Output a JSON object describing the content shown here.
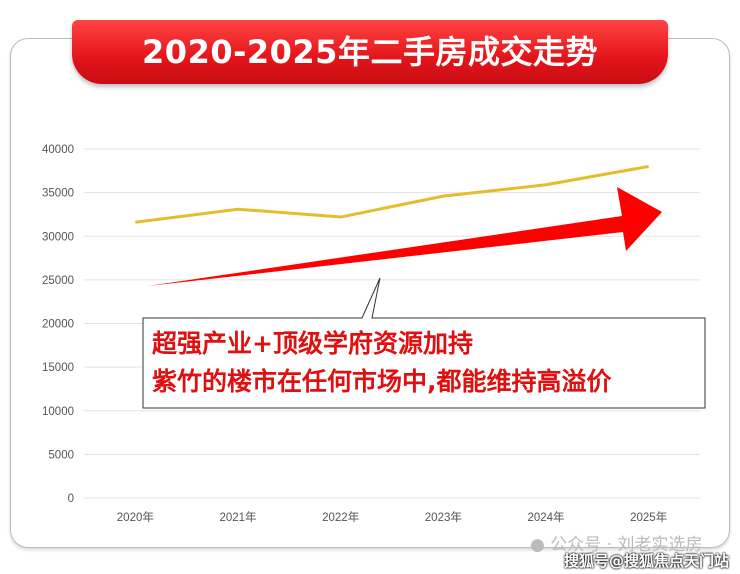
{
  "title": "2020-2025年二手房成交走势",
  "chart_data": {
    "type": "line",
    "title": "2020-2025年二手房成交走势",
    "categories": [
      "2020年",
      "2021年",
      "2022年",
      "2023年",
      "2024年",
      "2025年"
    ],
    "series": [
      {
        "values": [
          31600,
          33100,
          32200,
          34600,
          35900,
          38000
        ],
        "color": "#e3bd2a"
      }
    ],
    "ylim": [
      0,
      40000
    ],
    "yticks": [
      0,
      5000,
      10000,
      15000,
      20000,
      25000,
      30000,
      35000,
      40000
    ],
    "grid": true,
    "annotation_arrow_color": "#ff0000"
  },
  "callout": {
    "line1": "超强产业+顶级学府资源加持",
    "line2": "紫竹的楼市在任何市场中,都能维持高溢价"
  },
  "watermarks": {
    "wechat": "公众号 · 刘老实选房",
    "sohu": "搜狐号@搜狐焦点天门站"
  }
}
